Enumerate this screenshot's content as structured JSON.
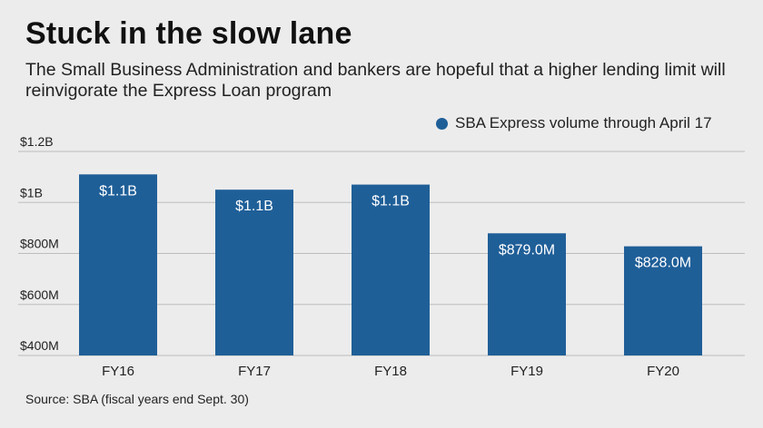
{
  "header": {
    "title": "Stuck in the slow lane",
    "subtitle": "The Small Business Administration and bankers are hopeful that a higher lending limit will reinvigorate the Express Loan program"
  },
  "footer": {
    "source": "Source: SBA (fiscal years end Sept. 30)"
  },
  "colors": {
    "bar": "#1f5f98",
    "grid": "#bdbdbd",
    "background": "#ececec"
  },
  "chart_data": {
    "type": "bar",
    "title": "Stuck in the slow lane",
    "categories": [
      "FY16",
      "FY17",
      "FY18",
      "FY19",
      "FY20"
    ],
    "series": [
      {
        "name": "SBA Express volume through April 17",
        "values": [
          1110,
          1050,
          1070,
          879,
          828
        ],
        "labels": [
          "$1.1B",
          "$1.1B",
          "$1.1B",
          "$879.0M",
          "$828.0M"
        ]
      }
    ],
    "ylim": [
      400,
      1200
    ],
    "yticks": [
      400,
      600,
      800,
      1000,
      1200
    ],
    "ytick_labels": [
      "$400M",
      "$600M",
      "$800M",
      "$1B",
      "$1.2B"
    ],
    "xlabel": "",
    "ylabel": "",
    "grid": true,
    "legend": "top-right"
  }
}
